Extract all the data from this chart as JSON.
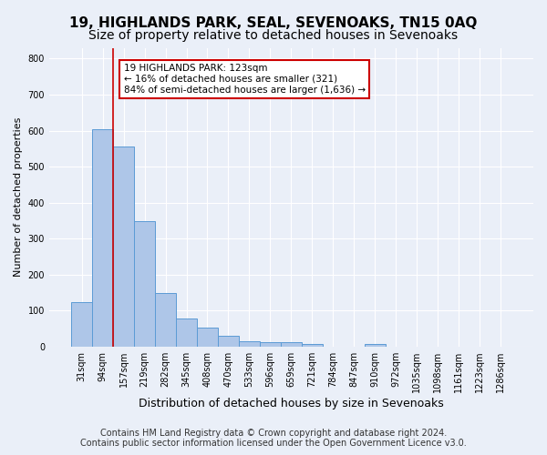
{
  "title": "19, HIGHLANDS PARK, SEAL, SEVENOAKS, TN15 0AQ",
  "subtitle": "Size of property relative to detached houses in Sevenoaks",
  "xlabel": "Distribution of detached houses by size in Sevenoaks",
  "ylabel": "Number of detached properties",
  "categories": [
    "31sqm",
    "94sqm",
    "157sqm",
    "219sqm",
    "282sqm",
    "345sqm",
    "408sqm",
    "470sqm",
    "533sqm",
    "596sqm",
    "659sqm",
    "721sqm",
    "784sqm",
    "847sqm",
    "910sqm",
    "972sqm",
    "1035sqm",
    "1098sqm",
    "1161sqm",
    "1223sqm",
    "1286sqm"
  ],
  "values": [
    125,
    605,
    555,
    348,
    148,
    78,
    52,
    30,
    15,
    13,
    13,
    7,
    0,
    0,
    8,
    0,
    0,
    0,
    0,
    0,
    0
  ],
  "bar_color": "#aec6e8",
  "bar_edge_color": "#5b9bd5",
  "annotation_text": "19 HIGHLANDS PARK: 123sqm\n← 16% of detached houses are smaller (321)\n84% of semi-detached houses are larger (1,636) →",
  "annotation_box_color": "#ffffff",
  "annotation_box_edge_color": "#cc0000",
  "vline_color": "#cc0000",
  "vline_x": 1.5,
  "ylim": [
    0,
    830
  ],
  "yticks": [
    0,
    100,
    200,
    300,
    400,
    500,
    600,
    700,
    800
  ],
  "footer": "Contains HM Land Registry data © Crown copyright and database right 2024.\nContains public sector information licensed under the Open Government Licence v3.0.",
  "bg_color": "#eaeff8",
  "plot_bg_color": "#eaeff8",
  "grid_color": "#ffffff",
  "title_fontsize": 11,
  "subtitle_fontsize": 10,
  "xlabel_fontsize": 9,
  "ylabel_fontsize": 8,
  "tick_fontsize": 7,
  "footer_fontsize": 7,
  "annotation_fontsize": 7.5
}
